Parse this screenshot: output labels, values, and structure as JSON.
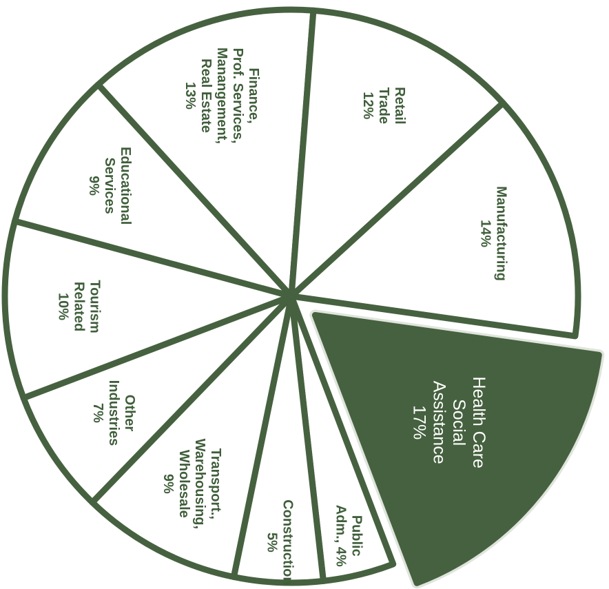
{
  "chart_data": {
    "type": "pie",
    "title": "",
    "colors": {
      "accent": "#46613f",
      "fill": "#ffffff",
      "exploded_fill": "#46613f",
      "label_dark": "#3f5e3a",
      "label_light": "#ffffff"
    },
    "slices": [
      {
        "lines": [
          "Health Care",
          "Social",
          "Assistance",
          "17%"
        ],
        "value": 17,
        "exploded": true
      },
      {
        "lines": [
          "Public",
          "Adm., 4%"
        ],
        "value": 4,
        "exploded": false
      },
      {
        "lines": [
          "Construction",
          "5%"
        ],
        "value": 5,
        "exploded": false
      },
      {
        "lines": [
          "Transport.,",
          "Warehousing,",
          "Wholesale",
          "9%"
        ],
        "value": 9,
        "exploded": false
      },
      {
        "lines": [
          "Other",
          "Industries",
          "7%"
        ],
        "value": 7,
        "exploded": false
      },
      {
        "lines": [
          "Tourism",
          "Related",
          "10%"
        ],
        "value": 10,
        "exploded": false
      },
      {
        "lines": [
          "Educational",
          "Services",
          "9%"
        ],
        "value": 9,
        "exploded": false
      },
      {
        "lines": [
          "Finance,",
          "Prof. Services,",
          "Manangement,",
          "Real Estate",
          "13%"
        ],
        "value": 13,
        "exploded": false
      },
      {
        "lines": [
          "Retail",
          "Trade",
          "12%"
        ],
        "value": 12,
        "exploded": false
      },
      {
        "lines": [
          "Manufacturing",
          "14%"
        ],
        "value": 14,
        "exploded": false
      }
    ]
  }
}
